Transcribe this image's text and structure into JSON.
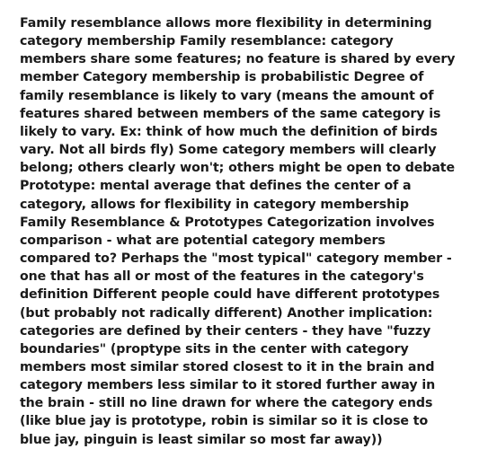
{
  "document": {
    "text_color": "#1a1a1a",
    "background_color": "#ffffff",
    "font_size": 14.2,
    "font_weight": 600,
    "line_height": 1.42,
    "body": "Family resemblance allows more flexibility in determining category membership Family resemblance: category members share some features; no feature is shared by every member Category membership is probabilistic Degree of family resemblance is likely to vary (means the amount of features shared between members of the same category is likely to vary. Ex: think of how much the definition of birds vary. Not all birds fly) Some category members will clearly belong; others clearly won't; others might be open to debate Prototype: mental average that defines the center of a category, allows for flexibility in category membership Family Resemblance & Prototypes Categorization involves comparison - what are potential category members compared to? Perhaps the \"most typical\" category member - one that has all or most of the features in the category's definition Different people could have different prototypes (but probably not radically different) Another implication: categories are defined by their centers - they have \"fuzzy boundaries\" (proptype sits in the center with category members most similar stored closest to it in the brain and category members less similar to it stored further away in the brain - still no line drawn for where the category ends (like blue jay is prototype, robin is similar so it is close to blue jay, pinguin is least similar so most far away))"
  }
}
